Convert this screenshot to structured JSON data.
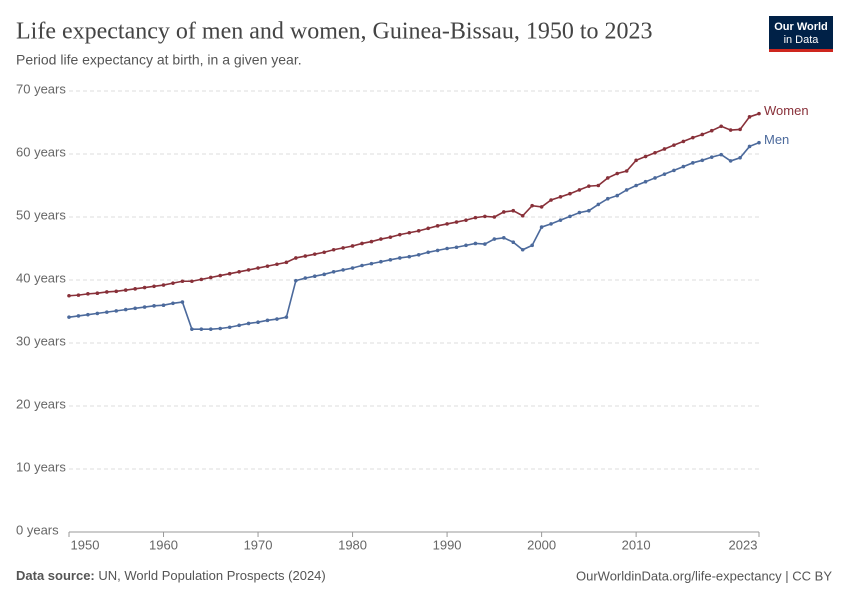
{
  "chart_data": {
    "type": "line",
    "title": "Life expectancy of men and women, Guinea-Bissau, 1950 to 2023",
    "subtitle": "Period life expectancy at birth, in a given year.",
    "source_label": "Data source:",
    "source": "UN, World Population Prospects (2024)",
    "credit": "OurWorldinData.org/life-expectancy | CC BY",
    "logo": [
      "Our World",
      "in Data"
    ],
    "x": [
      1950,
      1951,
      1952,
      1953,
      1954,
      1955,
      1956,
      1957,
      1958,
      1959,
      1960,
      1961,
      1962,
      1963,
      1964,
      1965,
      1966,
      1967,
      1968,
      1969,
      1970,
      1971,
      1972,
      1973,
      1974,
      1975,
      1976,
      1977,
      1978,
      1979,
      1980,
      1981,
      1982,
      1983,
      1984,
      1985,
      1986,
      1987,
      1988,
      1989,
      1990,
      1991,
      1992,
      1993,
      1994,
      1995,
      1996,
      1997,
      1998,
      1999,
      2000,
      2001,
      2002,
      2003,
      2004,
      2005,
      2006,
      2007,
      2008,
      2009,
      2010,
      2011,
      2012,
      2013,
      2014,
      2015,
      2016,
      2017,
      2018,
      2019,
      2020,
      2021,
      2022,
      2023
    ],
    "series": [
      {
        "name": "Women",
        "color": "#883039",
        "values": [
          37.5,
          37.6,
          37.8,
          37.9,
          38.1,
          38.2,
          38.4,
          38.6,
          38.8,
          39.0,
          39.2,
          39.5,
          39.8,
          39.8,
          40.1,
          40.4,
          40.7,
          41.0,
          41.3,
          41.6,
          41.9,
          42.2,
          42.5,
          42.8,
          43.5,
          43.8,
          44.1,
          44.4,
          44.8,
          45.1,
          45.4,
          45.8,
          46.1,
          46.5,
          46.8,
          47.2,
          47.5,
          47.8,
          48.2,
          48.6,
          48.9,
          49.2,
          49.5,
          49.9,
          50.1,
          50.0,
          50.8,
          51.0,
          50.2,
          51.8,
          51.6,
          52.7,
          53.2,
          53.7,
          54.3,
          54.9,
          55.0,
          56.2,
          56.9,
          57.3,
          59.0,
          59.6,
          60.2,
          60.8,
          61.4,
          62.0,
          62.6,
          63.1,
          63.7,
          64.4,
          63.8,
          63.9,
          65.9,
          66.4
        ]
      },
      {
        "name": "Men",
        "color": "#4c6a9c",
        "values": [
          34.1,
          34.3,
          34.5,
          34.7,
          34.9,
          35.1,
          35.3,
          35.5,
          35.7,
          35.9,
          36.0,
          36.3,
          36.5,
          32.2,
          32.2,
          32.2,
          32.3,
          32.5,
          32.8,
          33.1,
          33.3,
          33.6,
          33.8,
          34.1,
          39.9,
          40.3,
          40.6,
          40.9,
          41.3,
          41.6,
          41.9,
          42.3,
          42.6,
          42.9,
          43.2,
          43.5,
          43.7,
          44.0,
          44.4,
          44.7,
          45.0,
          45.2,
          45.5,
          45.8,
          45.7,
          46.5,
          46.7,
          46.0,
          44.8,
          45.5,
          48.4,
          48.9,
          49.5,
          50.1,
          50.7,
          51.0,
          52.0,
          52.9,
          53.4,
          54.3,
          55.0,
          55.6,
          56.2,
          56.8,
          57.4,
          58.0,
          58.6,
          59.0,
          59.5,
          59.9,
          58.9,
          59.4,
          61.2,
          61.8
        ]
      }
    ],
    "xlim": [
      1950,
      2023
    ],
    "xticks": [
      1950,
      1960,
      1970,
      1980,
      1990,
      2000,
      2010,
      2023
    ],
    "ylim": [
      0,
      70
    ],
    "yticks": [
      {
        "value": 0,
        "label": "0 years"
      },
      {
        "value": 10,
        "label": "10 years"
      },
      {
        "value": 20,
        "label": "20 years"
      },
      {
        "value": 30,
        "label": "30 years"
      },
      {
        "value": 40,
        "label": "40 years"
      },
      {
        "value": 50,
        "label": "50 years"
      },
      {
        "value": 60,
        "label": "60 years"
      },
      {
        "value": 70,
        "label": "70 years"
      }
    ],
    "grid": true
  }
}
